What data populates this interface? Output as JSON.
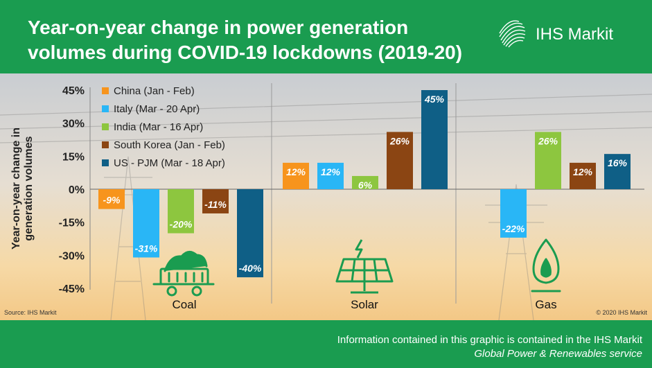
{
  "header": {
    "title_line1": "Year-on-year change in power generation",
    "title_line2": "volumes during COVID-19 lockdowns (2019-20)",
    "logo_text": "IHS Markit"
  },
  "source_text": "Source: IHS Markit",
  "copyright_text": "© 2020 IHS Markit",
  "footer": {
    "line1": "Information contained in this graphic is contained in the IHS Markit",
    "line2": "Global Power & Renewables service"
  },
  "chart_data": {
    "type": "bar",
    "categories": [
      "Coal",
      "Solar",
      "Gas"
    ],
    "series": [
      {
        "name": "China (Jan - Feb)",
        "color": "#f7941d",
        "values": [
          -9,
          12,
          null
        ],
        "labels": [
          "-9%",
          "12%",
          ""
        ]
      },
      {
        "name": "Italy (Mar - 20 Apr)",
        "color": "#29b6f6",
        "values": [
          -31,
          12,
          -22
        ],
        "labels": [
          "-31%",
          "12%",
          "-22%"
        ]
      },
      {
        "name": "India (Mar - 16 Apr)",
        "color": "#8dc63f",
        "values": [
          -20,
          6,
          26
        ],
        "labels": [
          "-20%",
          "6%",
          "26%"
        ]
      },
      {
        "name": "South Korea (Jan - Feb)",
        "color": "#8b4513",
        "values": [
          -11,
          26,
          12
        ],
        "labels": [
          "-11%",
          "26%",
          "12%"
        ]
      },
      {
        "name": "US - PJM (Mar - 18 Apr)",
        "color": "#0f5f86",
        "values": [
          -40,
          45,
          16
        ],
        "labels": [
          "-40%",
          "45%",
          "16%"
        ]
      }
    ],
    "ylabel_line1": "Year-on-year change in",
    "ylabel_line2": "generation volumes",
    "ylim": [
      -45,
      45
    ],
    "yticks": [
      45,
      30,
      15,
      0,
      -15,
      -30,
      -45
    ],
    "ytick_labels": [
      "45%",
      "30%",
      "15%",
      "0%",
      "-15%",
      "-30%",
      "-45%"
    ],
    "legend_position": "top-left",
    "icons": [
      "coal-cart-icon",
      "solar-panel-icon",
      "gas-flame-icon"
    ],
    "icon_color": "#1a9c50"
  }
}
